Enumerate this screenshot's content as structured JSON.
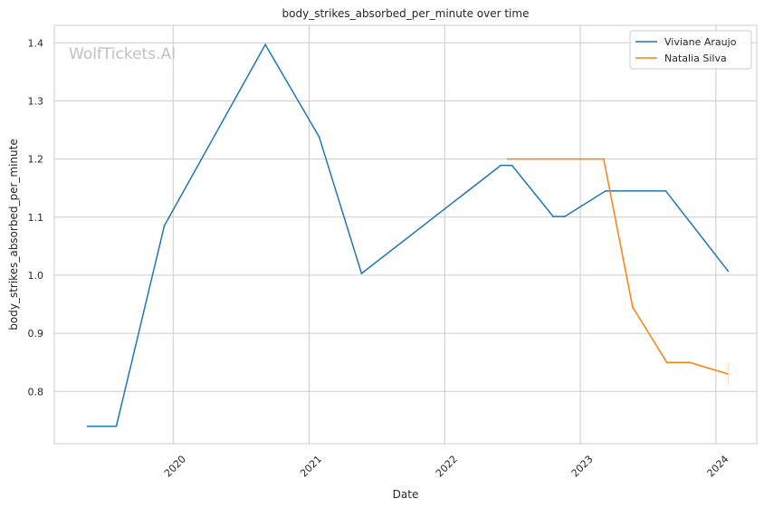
{
  "chart_data": {
    "type": "line",
    "title": "body_strikes_absorbed_per_minute over time",
    "xlabel": "Date",
    "ylabel": "body_strikes_absorbed_per_minute",
    "watermark": "WolfTickets.AI",
    "x_axis_type": "date",
    "xlim": [
      "2019-02-15",
      "2024-04-20"
    ],
    "ylim": [
      0.71,
      1.43
    ],
    "x_ticks": [
      {
        "date": "2020-01-01",
        "label": "2020"
      },
      {
        "date": "2021-01-01",
        "label": "2021"
      },
      {
        "date": "2022-01-01",
        "label": "2022"
      },
      {
        "date": "2023-01-01",
        "label": "2023"
      },
      {
        "date": "2024-01-01",
        "label": "2024"
      }
    ],
    "y_ticks": [
      {
        "value": 0.8,
        "label": "0.8"
      },
      {
        "value": 0.9,
        "label": "0.9"
      },
      {
        "value": 1.0,
        "label": "1.0"
      },
      {
        "value": 1.1,
        "label": "1.1"
      },
      {
        "value": 1.2,
        "label": "1.2"
      },
      {
        "value": 1.3,
        "label": "1.3"
      },
      {
        "value": 1.4,
        "label": "1.4"
      }
    ],
    "grid": true,
    "legend_position": "top-right",
    "series": [
      {
        "name": "Viviane Araujo",
        "color": "#1f77b4",
        "points": [
          {
            "x": "2019-05-15",
            "y": 0.74
          },
          {
            "x": "2019-08-01",
            "y": 0.74
          },
          {
            "x": "2019-12-08",
            "y": 1.085
          },
          {
            "x": "2020-09-05",
            "y": 1.397
          },
          {
            "x": "2021-01-28",
            "y": 1.238
          },
          {
            "x": "2021-05-22",
            "y": 1.003
          },
          {
            "x": "2022-06-01",
            "y": 1.189
          },
          {
            "x": "2022-07-01",
            "y": 1.189
          },
          {
            "x": "2022-10-20",
            "y": 1.101
          },
          {
            "x": "2022-11-20",
            "y": 1.101
          },
          {
            "x": "2023-03-10",
            "y": 1.145
          },
          {
            "x": "2023-08-19",
            "y": 1.145
          },
          {
            "x": "2024-02-03",
            "y": 1.007
          }
        ]
      },
      {
        "name": "Natalia Silva",
        "color": "#ff7f0e",
        "points": [
          {
            "x": "2022-06-20",
            "y": 1.2
          },
          {
            "x": "2023-03-05",
            "y": 1.2
          },
          {
            "x": "2023-05-22",
            "y": 0.945
          },
          {
            "x": "2023-08-22",
            "y": 0.85
          },
          {
            "x": "2023-10-22",
            "y": 0.85
          },
          {
            "x": "2024-02-03",
            "y": 0.83
          }
        ]
      }
    ]
  }
}
